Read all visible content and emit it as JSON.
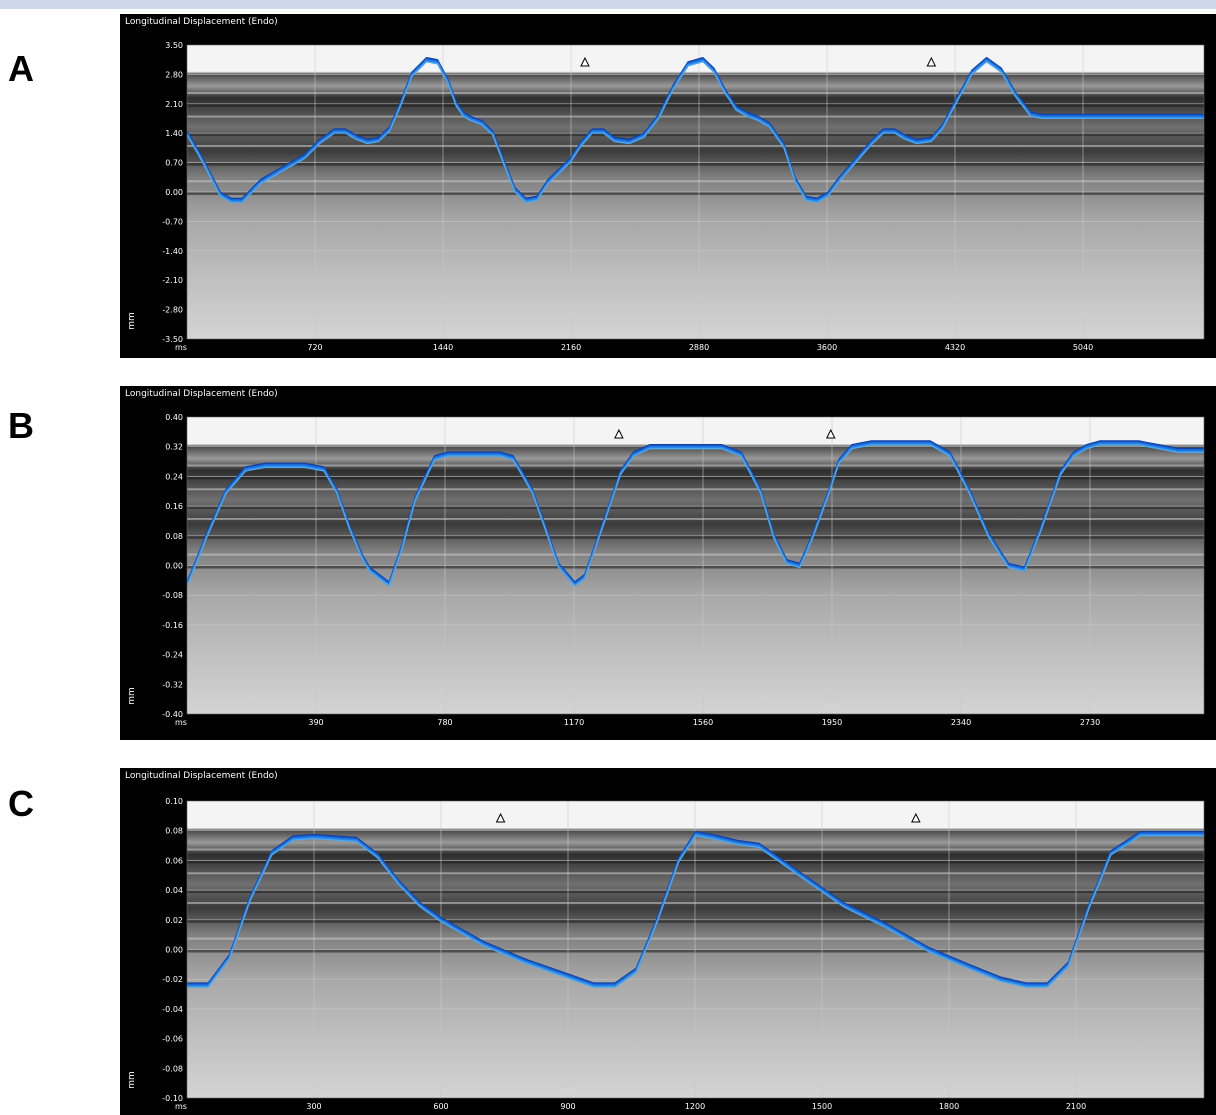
{
  "chart_data": [
    {
      "panel_label": "A",
      "type": "line",
      "title": "Longitudinal Displacement (Endo)",
      "xlabel": "ms",
      "ylabel": "mm",
      "xlim": [
        0,
        5520
      ],
      "ylim": [
        -3.5,
        3.5
      ],
      "xticks": [
        "720",
        "1440",
        "2160",
        "2880",
        "3600",
        "4320",
        "5040"
      ],
      "yticks": [
        "3.50",
        "2.80",
        "2.10",
        "1.40",
        "0.70",
        "0.00",
        "-0.70",
        "-1.40",
        "-2.10",
        "-2.80",
        "-3.50"
      ],
      "event_marker_x": [
        2160,
        4040
      ],
      "grid": true,
      "line_color": "#1f6fe0",
      "background": "grayscale M-mode echo",
      "series": [
        {
          "x": [
            0,
            80,
            180,
            240,
            300,
            400,
            520,
            640,
            720,
            800,
            860,
            920,
            980,
            1040,
            1100,
            1160,
            1220,
            1300,
            1360,
            1420,
            1460,
            1500,
            1540,
            1600,
            1660,
            1720,
            1780,
            1840,
            1900,
            1960,
            2020,
            2080,
            2140,
            2200,
            2260,
            2320,
            2400,
            2480,
            2560,
            2640,
            2720,
            2800,
            2860,
            2920,
            2980,
            3040,
            3100,
            3160,
            3240,
            3300,
            3360,
            3420,
            3480,
            3540,
            3600,
            3660,
            3720,
            3780,
            3840,
            3900,
            3960,
            4040,
            4100,
            4180,
            4260,
            4340,
            4420,
            4500,
            4580,
            4640,
            4720,
            4800,
            4860,
            4920,
            4980,
            5040,
            5100,
            5160,
            5220,
            5280,
            5320,
            5360,
            5400,
            5460,
            5520
          ],
          "y": [
            1.4,
            0.8,
            -0.05,
            -0.2,
            -0.2,
            0.25,
            0.55,
            0.85,
            1.2,
            1.45,
            1.45,
            1.3,
            1.2,
            1.25,
            1.5,
            2.1,
            2.8,
            3.15,
            3.1,
            2.6,
            2.1,
            1.85,
            1.75,
            1.65,
            1.4,
            0.7,
            0.05,
            -0.2,
            -0.15,
            0.25,
            0.5,
            0.75,
            1.15,
            1.45,
            1.45,
            1.25,
            1.2,
            1.35,
            1.8,
            2.5,
            3.05,
            3.15,
            2.9,
            2.4,
            2.0,
            1.85,
            1.75,
            1.6,
            1.1,
            0.3,
            -0.15,
            -0.2,
            -0.05,
            0.3,
            0.6,
            0.9,
            1.2,
            1.45,
            1.45,
            1.3,
            1.2,
            1.25,
            1.55,
            2.2,
            2.85,
            3.15,
            2.9,
            2.3,
            1.85,
            1.8,
            1.8,
            1.8,
            1.8,
            1.8,
            1.8,
            1.8,
            1.8,
            1.8,
            1.8,
            1.8,
            1.8,
            1.8,
            1.8,
            1.8,
            1.8
          ]
        }
      ]
    },
    {
      "panel_label": "B",
      "type": "line",
      "title": "Longitudinal Displacement (Endo)",
      "xlabel": "ms",
      "ylabel": "mm",
      "xlim": [
        0,
        3120
      ],
      "ylim": [
        -0.4,
        0.4
      ],
      "xticks": [
        "390",
        "780",
        "1170",
        "1560",
        "1950",
        "2340",
        "2730"
      ],
      "yticks": [
        "0.40",
        "0.32",
        "0.24",
        "0.16",
        "0.08",
        "0.00",
        "-0.08",
        "-0.16",
        "-0.24",
        "-0.32",
        "-0.40"
      ],
      "event_marker_x": [
        1325,
        1975
      ],
      "grid": true,
      "line_color": "#1f6fe0",
      "background": "grayscale M-mode echo",
      "series": [
        {
          "x": [
            0,
            60,
            120,
            180,
            240,
            300,
            360,
            420,
            460,
            500,
            540,
            560,
            620,
            660,
            700,
            760,
            800,
            840,
            900,
            960,
            1000,
            1060,
            1100,
            1140,
            1190,
            1220,
            1280,
            1330,
            1370,
            1420,
            1460,
            1520,
            1580,
            1640,
            1700,
            1760,
            1800,
            1840,
            1880,
            1920,
            1970,
            2000,
            2040,
            2100,
            2160,
            2220,
            2280,
            2340,
            2400,
            2460,
            2520,
            2570,
            2620,
            2680,
            2720,
            2760,
            2800,
            2860,
            2920,
            2980,
            3040,
            3080,
            3120
          ],
          "y": [
            -0.05,
            0.08,
            0.2,
            0.26,
            0.27,
            0.27,
            0.27,
            0.26,
            0.2,
            0.1,
            0.02,
            -0.01,
            -0.05,
            0.05,
            0.18,
            0.29,
            0.3,
            0.3,
            0.3,
            0.3,
            0.29,
            0.2,
            0.1,
            0.0,
            -0.05,
            -0.03,
            0.12,
            0.25,
            0.3,
            0.32,
            0.32,
            0.32,
            0.32,
            0.32,
            0.3,
            0.2,
            0.08,
            0.01,
            0.0,
            0.08,
            0.2,
            0.28,
            0.32,
            0.33,
            0.33,
            0.33,
            0.33,
            0.3,
            0.2,
            0.08,
            0.0,
            -0.01,
            0.1,
            0.25,
            0.3,
            0.32,
            0.33,
            0.33,
            0.33,
            0.32,
            0.31,
            0.31,
            0.31
          ]
        }
      ]
    },
    {
      "panel_label": "C",
      "type": "line",
      "title": "Longitudinal Displacement (Endo)",
      "xlabel": "ms",
      "ylabel": "mm",
      "xlim": [
        0,
        2400
      ],
      "ylim": [
        -0.1,
        0.1
      ],
      "xticks": [
        "300",
        "600",
        "900",
        "1200",
        "1500",
        "1800",
        "2100"
      ],
      "yticks": [
        "0.10",
        "0.08",
        "0.06",
        "0.04",
        "0.02",
        "0.00",
        "-0.02",
        "-0.04",
        "-0.06",
        "-0.08",
        "-0.10"
      ],
      "event_marker_x": [
        740,
        1720
      ],
      "grid": true,
      "line_color": "#1f6fe0",
      "background": "grayscale M-mode echo",
      "series": [
        {
          "x": [
            0,
            50,
            100,
            150,
            200,
            250,
            300,
            350,
            400,
            450,
            500,
            550,
            600,
            700,
            800,
            900,
            960,
            1010,
            1060,
            1110,
            1160,
            1200,
            1240,
            1300,
            1350,
            1400,
            1450,
            1500,
            1550,
            1650,
            1750,
            1850,
            1920,
            1980,
            2030,
            2080,
            2130,
            2180,
            2250,
            2320,
            2400
          ],
          "y": [
            -0.024,
            -0.024,
            -0.005,
            0.035,
            0.065,
            0.075,
            0.076,
            0.075,
            0.074,
            0.063,
            0.045,
            0.03,
            0.02,
            0.004,
            -0.008,
            -0.018,
            -0.024,
            -0.024,
            -0.014,
            0.02,
            0.06,
            0.078,
            0.076,
            0.072,
            0.07,
            0.06,
            0.05,
            0.04,
            0.03,
            0.016,
            0.0,
            -0.012,
            -0.02,
            -0.024,
            -0.024,
            -0.01,
            0.03,
            0.065,
            0.078,
            0.078,
            0.078
          ]
        }
      ]
    }
  ]
}
